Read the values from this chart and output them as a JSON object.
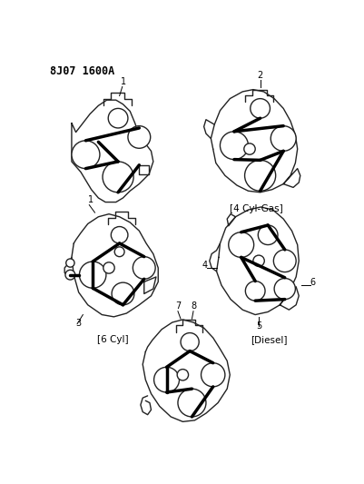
{
  "title": "8J07 1600A",
  "background_color": "#ffffff",
  "line_color": "#222222",
  "belt_color": "#000000",
  "caption_tr": "4 Cyl-Gas",
  "caption_ml": "6 Cyl",
  "caption_mr": "Diesel",
  "figsize": [
    4.02,
    5.33
  ],
  "dpi": 100
}
